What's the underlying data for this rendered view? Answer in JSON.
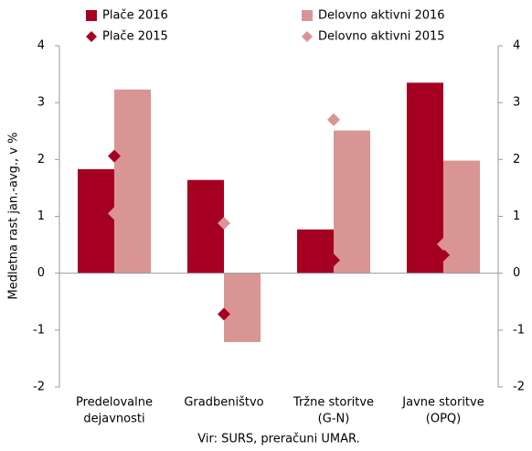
{
  "chart_data": {
    "type": "bar",
    "y_label": "Medletna rast jan.-avg., v %",
    "source": "Vir: SURS, preračuni UMAR.",
    "categories": [
      [
        "Predelovalne",
        "dejavnosti"
      ],
      [
        "Gradbeništvo"
      ],
      [
        "Tržne storitve",
        "(G-N)"
      ],
      [
        "Javne storitve",
        "(OPQ)"
      ]
    ],
    "series": [
      {
        "name": "Plače 2016",
        "type": "bar",
        "color": "#a50021",
        "values": [
          1.83,
          1.64,
          0.77,
          3.35
        ]
      },
      {
        "name": "Delovno aktivni 2016",
        "type": "bar",
        "color": "#d99594",
        "values": [
          3.23,
          -1.21,
          2.51,
          1.98
        ]
      },
      {
        "name": "Plače 2015",
        "type": "scatter",
        "color": "#a50021",
        "values": [
          2.06,
          -0.72,
          0.23,
          0.32
        ]
      },
      {
        "name": "Delovno aktivni 2015",
        "type": "scatter",
        "color": "#d99594",
        "values": [
          1.05,
          0.88,
          2.7,
          0.51
        ]
      }
    ],
    "ylim": [
      -2,
      4
    ],
    "yticks": [
      -2,
      -1,
      0,
      1,
      2,
      3,
      4
    ],
    "y2lim": [
      -2,
      4
    ],
    "y2ticks": [
      -2,
      -1,
      0,
      1,
      2,
      3,
      4
    ]
  }
}
